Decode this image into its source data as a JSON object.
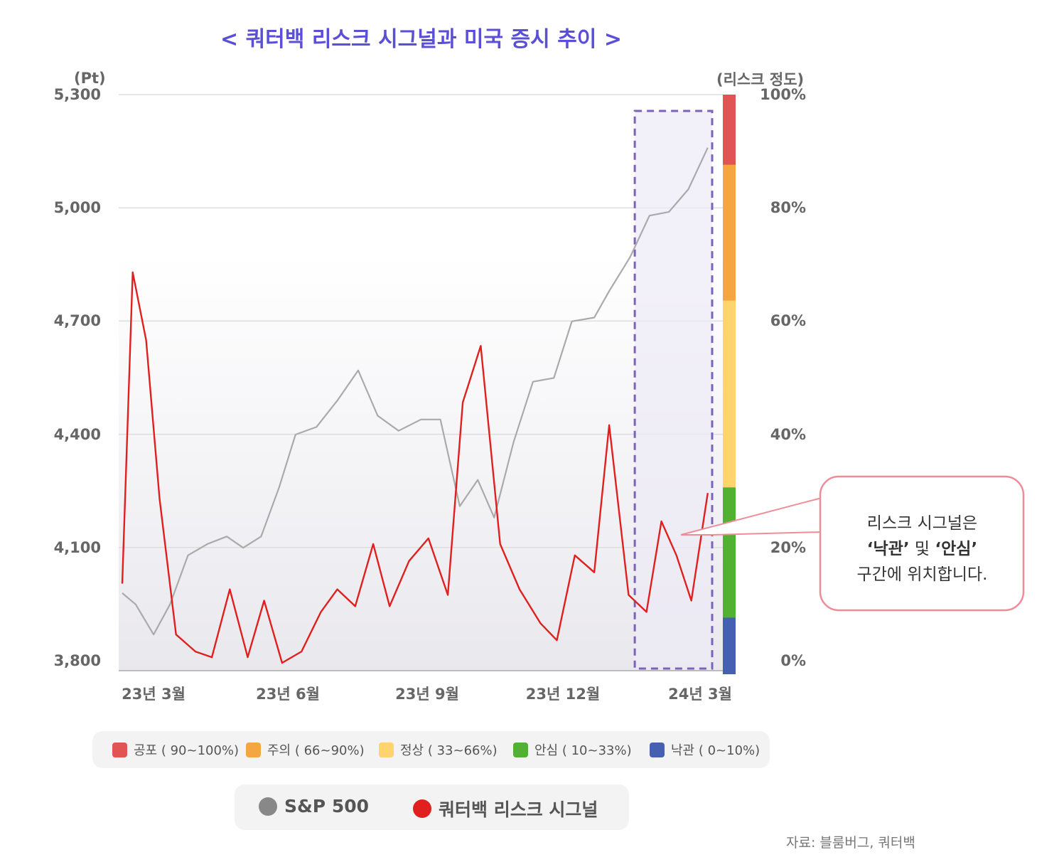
{
  "title": "< 쿼터백 리스크 시그널과 미국 증시 추이 >",
  "left_axis": {
    "unit": "(Pt)",
    "ticks": [
      "5,300",
      "5,000",
      "4,700",
      "4,400",
      "4,100",
      "3,800"
    ]
  },
  "right_axis": {
    "unit": "(리스크 정도)",
    "ticks": [
      "100%",
      "80%",
      "60%",
      "40%",
      "20%",
      "0%"
    ]
  },
  "x_axis": {
    "ticks": [
      "23년  3월",
      "23년 6월",
      "23년  9월",
      "23년 12월",
      "24년 3월"
    ]
  },
  "callout": {
    "line1": "리스크 시그널은",
    "line2_a": "‘낙관’",
    "line2_b": " 및 ",
    "line2_c": "‘안심’",
    "line3": "구간에 위치합니다."
  },
  "risk_bands": [
    {
      "label": "공포 ( 90~100%)",
      "color": "#e25454"
    },
    {
      "label": "주의 ( 66~90%)",
      "color": "#f4a640"
    },
    {
      "label": "정상 ( 33~66%)",
      "color": "#ffd36e"
    },
    {
      "label": "안심 ( 10~33%)",
      "color": "#52b133"
    },
    {
      "label": "낙관 ( 0~10%)",
      "color": "#4560b0"
    }
  ],
  "series_legend": [
    {
      "label": "S&P 500",
      "color": "#888888"
    },
    {
      "label": "쿼터백 리스크 시그널",
      "color": "#e0201e"
    }
  ],
  "source": "자료: 블룸버그, 쿼터백",
  "chart_data": {
    "type": "line",
    "ylim_left": [
      3800,
      5300
    ],
    "ylim_right": [
      0,
      100
    ],
    "x_range": [
      "2023-02-20",
      "2024-03-20"
    ],
    "highlight_period": [
      "2024-02-01",
      "2024-03-20"
    ],
    "band_thresholds_percent": [
      0,
      10,
      33,
      66,
      90,
      100
    ],
    "series": [
      {
        "name": "S&P 500",
        "axis": "left",
        "x": [
          "2023-02-20",
          "2023-03-01",
          "2023-03-13",
          "2023-03-24",
          "2023-04-05",
          "2023-04-18",
          "2023-05-01",
          "2023-05-12",
          "2023-05-24",
          "2023-06-05",
          "2023-06-16",
          "2023-06-30",
          "2023-07-14",
          "2023-07-28",
          "2023-08-10",
          "2023-08-24",
          "2023-09-08",
          "2023-09-21",
          "2023-10-04",
          "2023-10-16",
          "2023-10-27",
          "2023-11-09",
          "2023-11-22",
          "2023-12-06",
          "2023-12-18",
          "2024-01-02",
          "2024-01-12",
          "2024-01-26",
          "2024-02-08",
          "2024-02-21",
          "2024-03-05",
          "2024-03-18"
        ],
        "values": [
          4000,
          3970,
          3890,
          3970,
          4100,
          4130,
          4150,
          4120,
          4150,
          4280,
          4420,
          4440,
          4510,
          4590,
          4470,
          4430,
          4460,
          4460,
          4230,
          4300,
          4200,
          4400,
          4560,
          4570,
          4720,
          4730,
          4800,
          4890,
          5000,
          5010,
          5070,
          5180
        ]
      },
      {
        "name": "쿼터백 리스크 시그널",
        "axis": "right",
        "x": [
          "2023-02-20",
          "2023-02-27",
          "2023-03-08",
          "2023-03-17",
          "2023-03-28",
          "2023-04-10",
          "2023-04-21",
          "2023-05-03",
          "2023-05-15",
          "2023-05-26",
          "2023-06-07",
          "2023-06-20",
          "2023-07-03",
          "2023-07-14",
          "2023-07-26",
          "2023-08-07",
          "2023-08-18",
          "2023-08-31",
          "2023-09-13",
          "2023-09-26",
          "2023-10-06",
          "2023-10-18",
          "2023-10-31",
          "2023-11-13",
          "2023-11-27",
          "2023-12-08",
          "2023-12-20",
          "2024-01-02",
          "2024-01-12",
          "2024-01-25",
          "2024-02-06",
          "2024-02-16",
          "2024-02-26",
          "2024-03-07",
          "2024-03-18"
        ],
        "values": [
          15,
          70,
          58,
          30,
          6,
          3,
          2,
          14,
          2,
          12,
          1,
          3,
          10,
          14,
          11,
          22,
          11,
          19,
          23,
          13,
          47,
          57,
          22,
          14,
          8,
          5,
          20,
          17,
          43,
          13,
          10,
          26,
          20,
          12,
          31
        ]
      }
    ]
  }
}
